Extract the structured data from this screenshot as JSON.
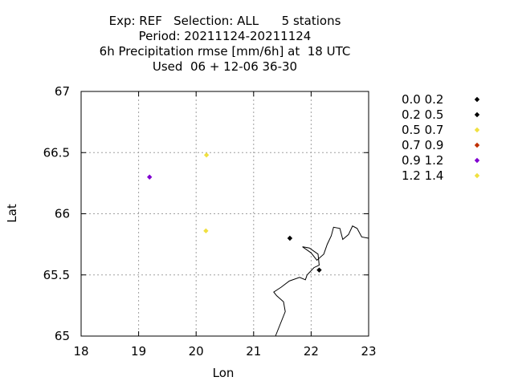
{
  "chart_data": {
    "type": "scatter",
    "title_lines": [
      "Exp: REF   Selection: ALL      5 stations",
      "Period: 20211124-20211124",
      "6h Precipitation rmse [mm/6h] at  18 UTC",
      "Used  06 + 12-06 36-30"
    ],
    "xlabel": "Lon",
    "ylabel": "Lat",
    "xlim": [
      18,
      23
    ],
    "ylim": [
      65,
      67
    ],
    "xticks": [
      18,
      19,
      20,
      21,
      22,
      23
    ],
    "yticks": [
      65,
      65.5,
      66,
      66.5,
      67
    ],
    "xtick_labels": [
      "18",
      "19",
      "20",
      "21",
      "22",
      "23"
    ],
    "ytick_labels": [
      "65",
      "65.5",
      "66",
      "66.5",
      "67"
    ],
    "grid": true,
    "legend_position": "right",
    "series": [
      {
        "name": "0.0 0.2",
        "color": "#000000",
        "points": []
      },
      {
        "name": "0.2 0.5",
        "color": "#000000",
        "points": [
          {
            "x": 21.63,
            "y": 65.8
          },
          {
            "x": 22.14,
            "y": 65.54
          }
        ]
      },
      {
        "name": "0.5 0.7",
        "color": "#f0e040",
        "points": [
          {
            "x": 20.18,
            "y": 66.48
          },
          {
            "x": 20.17,
            "y": 65.86
          }
        ]
      },
      {
        "name": "0.7 0.9",
        "color": "#c03000",
        "points": []
      },
      {
        "name": "0.9 1.2",
        "color": "#8000d0",
        "points": [
          {
            "x": 19.19,
            "y": 66.3
          }
        ]
      },
      {
        "name": "1.2 1.4",
        "color": "#f0e040",
        "points": []
      }
    ],
    "coastline": [
      [
        21.38,
        65.0
      ],
      [
        21.55,
        65.2
      ],
      [
        21.52,
        65.28
      ],
      [
        21.4,
        65.33
      ],
      [
        21.35,
        65.36
      ],
      [
        21.48,
        65.4
      ],
      [
        21.62,
        65.45
      ],
      [
        21.8,
        65.48
      ],
      [
        21.9,
        65.46
      ],
      [
        21.93,
        65.5
      ],
      [
        22.05,
        65.56
      ],
      [
        22.14,
        65.58
      ],
      [
        22.12,
        65.67
      ],
      [
        21.97,
        65.72
      ],
      [
        21.85,
        65.73
      ],
      [
        22.0,
        65.68
      ],
      [
        22.1,
        65.62
      ],
      [
        22.22,
        65.67
      ],
      [
        22.28,
        65.75
      ],
      [
        22.35,
        65.82
      ],
      [
        22.39,
        65.89
      ],
      [
        22.5,
        65.88
      ],
      [
        22.55,
        65.79
      ],
      [
        22.65,
        65.83
      ],
      [
        22.72,
        65.9
      ],
      [
        22.8,
        65.88
      ],
      [
        22.88,
        65.81
      ],
      [
        23.0,
        65.8
      ]
    ]
  }
}
